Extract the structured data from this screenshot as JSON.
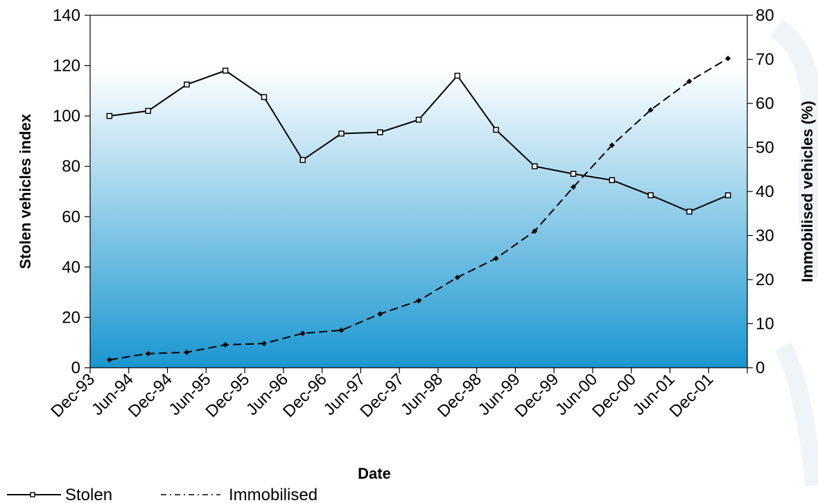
{
  "chart_data": {
    "type": "line",
    "xlabel": "Date",
    "ylabel_left": "Stolen vehicles index",
    "ylabel_right": "Immobilised vehicles (%)",
    "categories": [
      "Dec-93",
      "Jun-94",
      "Dec-94",
      "Jun-95",
      "Dec-95",
      "Jun-96",
      "Dec-96",
      "Jun-97",
      "Dec-97",
      "Jun-98",
      "Dec-98",
      "Jun-99",
      "Dec-99",
      "Jun-00",
      "Dec-00",
      "Jun-01",
      "Dec-01"
    ],
    "y_left": {
      "min": 0,
      "max": 140,
      "step": 20,
      "ticks": [
        "0",
        "20",
        "40",
        "60",
        "80",
        "100",
        "120",
        "140"
      ]
    },
    "y_right": {
      "min": 0,
      "max": 80,
      "step": 10,
      "ticks": [
        "0",
        "10",
        "20",
        "30",
        "40",
        "50",
        "60",
        "70",
        "80"
      ]
    },
    "series": [
      {
        "name": "Stolen",
        "axis": "left",
        "style": "solid",
        "marker": "square",
        "color": "#000000",
        "values": [
          100,
          102,
          112.5,
          118,
          107.5,
          82.5,
          93,
          93.5,
          98.5,
          116,
          94.5,
          80,
          77,
          74.5,
          68.5,
          62,
          68.5
        ]
      },
      {
        "name": "Immobilised",
        "axis": "right",
        "style": "dashed",
        "marker": "diamond",
        "color": "#000000",
        "values": [
          1.8,
          3.2,
          3.5,
          5.2,
          5.5,
          7.8,
          8.5,
          12.2,
          15.2,
          20.5,
          24.8,
          31,
          41,
          50.5,
          58.5,
          65,
          70.2
        ]
      }
    ],
    "legend": {
      "position": "bottom-left"
    },
    "grid": false,
    "background": {
      "top": "#ffffff",
      "bottom": "#1a96d0"
    }
  }
}
